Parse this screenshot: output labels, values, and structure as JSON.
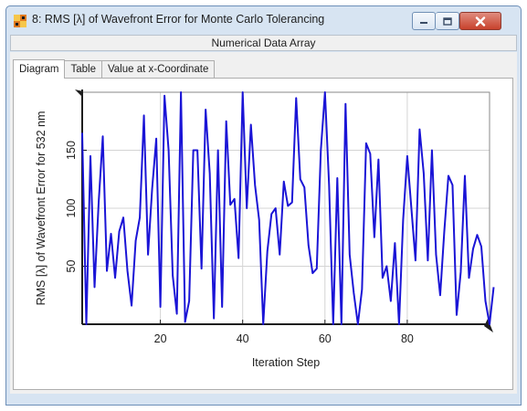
{
  "window": {
    "title": "8: RMS [λ] of Wavefront Error for Monte Carlo Tolerancing",
    "subheader": "Numerical Data Array",
    "minimize_icon": "minimize-icon",
    "maximize_icon": "maximize-icon",
    "close_icon": "close-icon",
    "close_color": "#c8412c"
  },
  "tabs": [
    {
      "label": "Diagram",
      "active": true
    },
    {
      "label": "Table",
      "active": false
    },
    {
      "label": "Value at x-Coordinate",
      "active": false
    }
  ],
  "chart_data": {
    "type": "line",
    "title": "",
    "xlabel": "Iteration Step",
    "ylabel": "RMS [λ] of Wavefront Error for 532 nm",
    "xlim": [
      1,
      100
    ],
    "ylim": [
      0,
      200
    ],
    "xticks": [
      20,
      40,
      60,
      80
    ],
    "yticks": [
      50,
      100,
      150
    ],
    "grid": true,
    "line_color": "#1a14d6",
    "series": [
      {
        "values": [
          165,
          0,
          145,
          32,
          105,
          162,
          46,
          78,
          40,
          80,
          92,
          46,
          16,
          72,
          92,
          180,
          60,
          117,
          160,
          15,
          197,
          150,
          42,
          9,
          200,
          2,
          20,
          150,
          150,
          48,
          185,
          130,
          5,
          150,
          15,
          175,
          103,
          108,
          57,
          200,
          100,
          172,
          120,
          90,
          0,
          63,
          95,
          100,
          60,
          123,
          102,
          105,
          195,
          125,
          118,
          68,
          44,
          48,
          150,
          200,
          120,
          0,
          126,
          0,
          190,
          60,
          27,
          0,
          30,
          156,
          147,
          75,
          142,
          40,
          50,
          20,
          70,
          0,
          90,
          145,
          100,
          55,
          168,
          130,
          55,
          150,
          60,
          25,
          80,
          128,
          120,
          8,
          45,
          128,
          40,
          65,
          77,
          67,
          20,
          0,
          32
        ]
      }
    ]
  }
}
